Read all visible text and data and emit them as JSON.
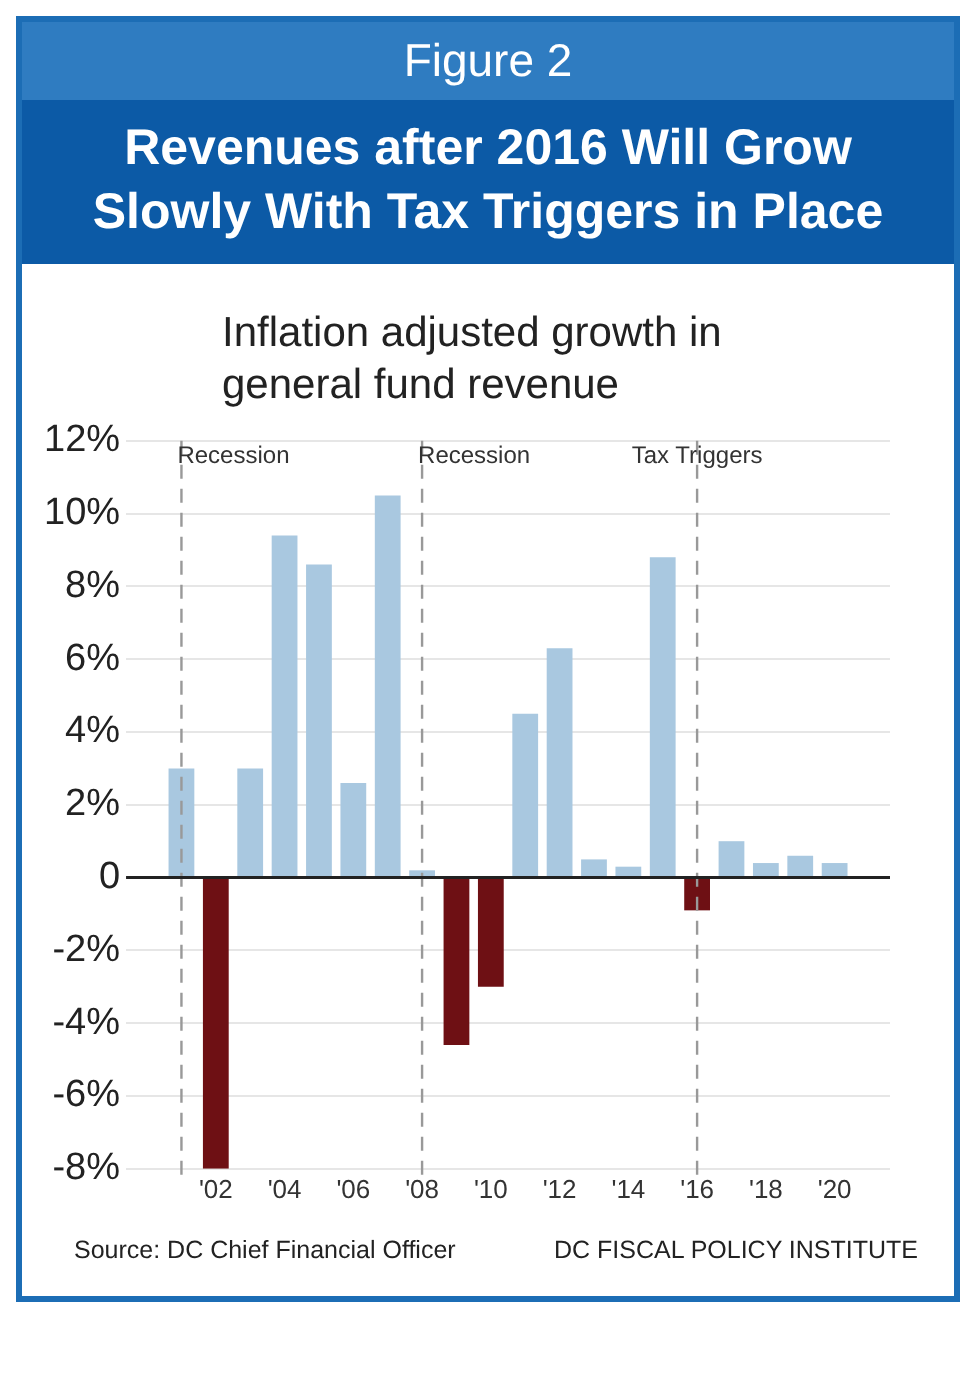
{
  "chart_data": {
    "type": "bar",
    "title": "Revenues after 2016 Will Grow Slowly With Tax Triggers in Place",
    "subtitle": "Inflation adjusted growth in general fund revenue",
    "annotations": [
      "Figure 2",
      "Source: DC Chief Financial Officer",
      "DC FISCAL POLICY INSTITUTE"
    ],
    "x": [
      2001,
      2002,
      2003,
      2004,
      2005,
      2006,
      2007,
      2008,
      2009,
      2010,
      2011,
      2012,
      2013,
      2014,
      2015,
      2016,
      2017,
      2018,
      2019,
      2020
    ],
    "values": [
      3.0,
      -8.0,
      3.0,
      9.4,
      8.6,
      2.6,
      10.5,
      0.2,
      -4.6,
      -3.0,
      4.5,
      6.3,
      0.5,
      0.3,
      8.8,
      -0.9,
      1.0,
      0.4,
      0.6,
      0.4
    ],
    "colors": [
      "#a9c8e0",
      "#6e1014",
      "#a9c8e0",
      "#a9c8e0",
      "#a9c8e0",
      "#a9c8e0",
      "#a9c8e0",
      "#a9c8e0",
      "#6e1014",
      "#6e1014",
      "#a9c8e0",
      "#a9c8e0",
      "#a9c8e0",
      "#a9c8e0",
      "#a9c8e0",
      "#6e1014",
      "#a9c8e0",
      "#a9c8e0",
      "#a9c8e0",
      "#a9c8e0"
    ],
    "xlim": [
      2000.5,
      2020.5
    ],
    "xticks": [
      {
        "value": 2002,
        "label": "'02"
      },
      {
        "value": 2004,
        "label": "'04"
      },
      {
        "value": 2006,
        "label": "'06"
      },
      {
        "value": 2008,
        "label": "'08"
      },
      {
        "value": 2010,
        "label": "'10"
      },
      {
        "value": 2012,
        "label": "'12"
      },
      {
        "value": 2014,
        "label": "'14"
      },
      {
        "value": 2016,
        "label": "'16"
      },
      {
        "value": 2018,
        "label": "'18"
      },
      {
        "value": 2020,
        "label": "'20"
      }
    ],
    "ylim": [
      -8,
      12
    ],
    "yticks": [
      {
        "value": -8,
        "label": "-8%"
      },
      {
        "value": -6,
        "label": "-6%"
      },
      {
        "value": -4,
        "label": "-4%"
      },
      {
        "value": -2,
        "label": "-2%"
      },
      0,
      {
        "value": 2,
        "label": "2%"
      },
      {
        "value": 4,
        "label": "4%"
      },
      {
        "value": 6,
        "label": "6%"
      },
      {
        "value": 8,
        "label": "8%"
      },
      {
        "value": 10,
        "label": "10%"
      },
      {
        "value": 12,
        "label": "12%"
      }
    ],
    "ref_lines": [
      {
        "axis": "x",
        "value": 2001,
        "label": "Recession",
        "color": "#999999",
        "line_style": "dashed"
      },
      {
        "axis": "x",
        "value": 2008,
        "label": "Recession",
        "color": "#999999",
        "line_style": "dashed"
      },
      {
        "axis": "x",
        "value": 2016,
        "label": "Tax Triggers",
        "color": "#999999",
        "line_style": "dashed"
      }
    ],
    "grid": "y",
    "legend": false
  }
}
